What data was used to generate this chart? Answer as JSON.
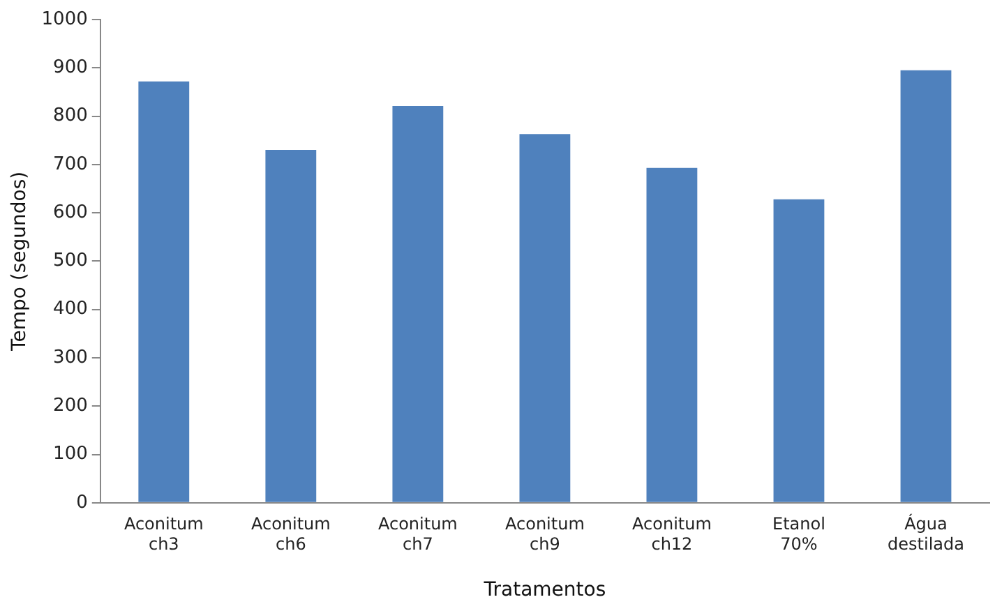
{
  "chart_data": {
    "type": "bar",
    "xlabel": "Tratamentos",
    "ylabel": "Tempo (segundos)",
    "categories": [
      "Aconitum ch3",
      "Aconitum ch6",
      "Aconitum ch7",
      "Aconitum ch9",
      "Aconitum ch12",
      "Etanol 70%",
      "Água destilada"
    ],
    "values": [
      872,
      730,
      821,
      763,
      693,
      628,
      895
    ],
    "color": "#4f81bd",
    "ylim": [
      0,
      1000
    ],
    "yticks": [
      0,
      100,
      200,
      300,
      400,
      500,
      600,
      700,
      800,
      900,
      1000
    ],
    "grid": false,
    "legend": false
  }
}
